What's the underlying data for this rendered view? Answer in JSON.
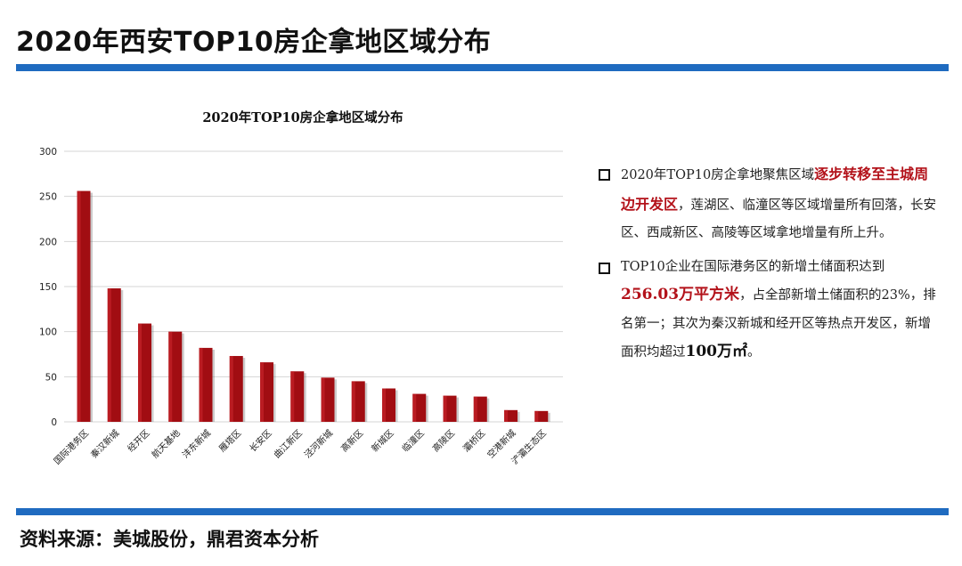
{
  "header": {
    "title": "2020年西安TOP10房企拿地区域分布"
  },
  "chart_data": {
    "type": "bar",
    "title": "2020年TOP10房企拿地区域分布",
    "categories": [
      "国际港务区",
      "秦汉新城",
      "经开区",
      "航天基地",
      "沣东新城",
      "雁塔区",
      "长安区",
      "曲江新区",
      "泾河新城",
      "高新区",
      "新城区",
      "临潼区",
      "高陵区",
      "灞桥区",
      "空港新城",
      "浐灞生态区"
    ],
    "values": [
      256,
      148,
      109,
      100,
      82,
      73,
      66,
      56,
      49,
      45,
      37,
      31,
      29,
      28,
      13,
      12
    ],
    "ylim": [
      0,
      300
    ],
    "yticks": [
      0,
      50,
      100,
      150,
      200,
      250,
      300
    ],
    "xlabel": "",
    "ylabel": "",
    "grid": true,
    "bar_color": "#a10d12"
  },
  "notes": {
    "note1": {
      "t1": "2020年TOP10房企拿地聚焦区域",
      "hl": "逐步转移至主城周边开发区",
      "t2": "，莲湖区、临潼区等区域增量所有回落，长安区、西咸新区、高陵等区域拿地增量有所上升。"
    },
    "note2": {
      "t1": "TOP10企业在国际港务区的新增土储面积达到",
      "hl": "256.03万平方米",
      "t2": "，占全部新增土储面积的23%，排名第一；其次为秦汉新城和经开区等热点开发区，新增面积均超过",
      "hl2": "100万㎡",
      "t3": "。"
    }
  },
  "footer": {
    "source": "资料来源：美城股份，鼎君资本分析"
  }
}
